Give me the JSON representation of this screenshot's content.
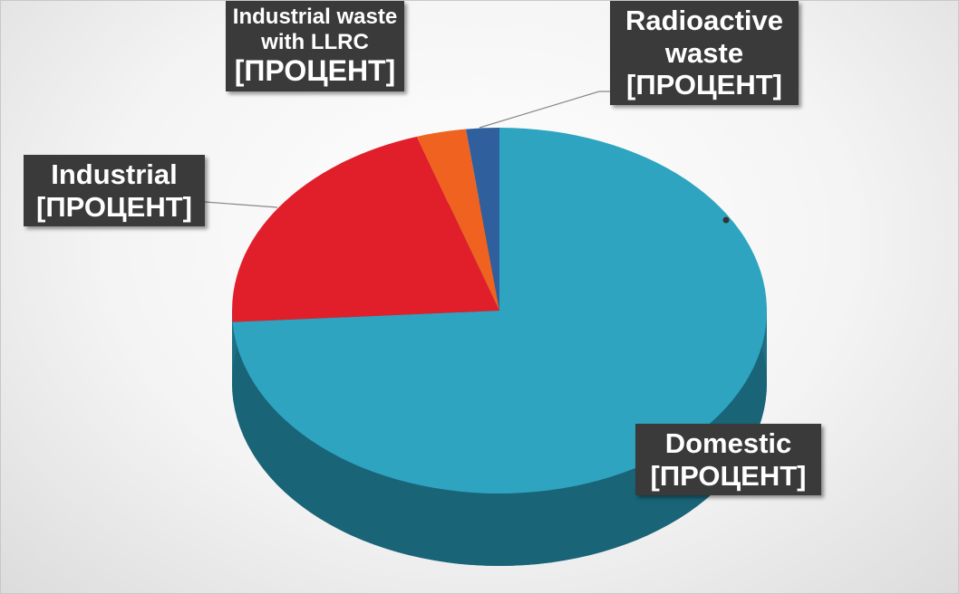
{
  "chart_data": {
    "type": "pie",
    "categories": [
      "Domestic",
      "Industrial",
      "Industrial waste with LLRC",
      "Radioactive waste"
    ],
    "values": [
      74,
      21,
      3,
      2
    ],
    "value_labels": [
      "[ПРОЦЕНТ]",
      "[ПРОЦЕНТ]",
      "[ПРОЦЕНТ]",
      "[ПРОЦЕНТ]"
    ],
    "colors": [
      "#2ea4c1",
      "#e01f2b",
      "#f0621f",
      "#305f9e"
    ]
  }
}
